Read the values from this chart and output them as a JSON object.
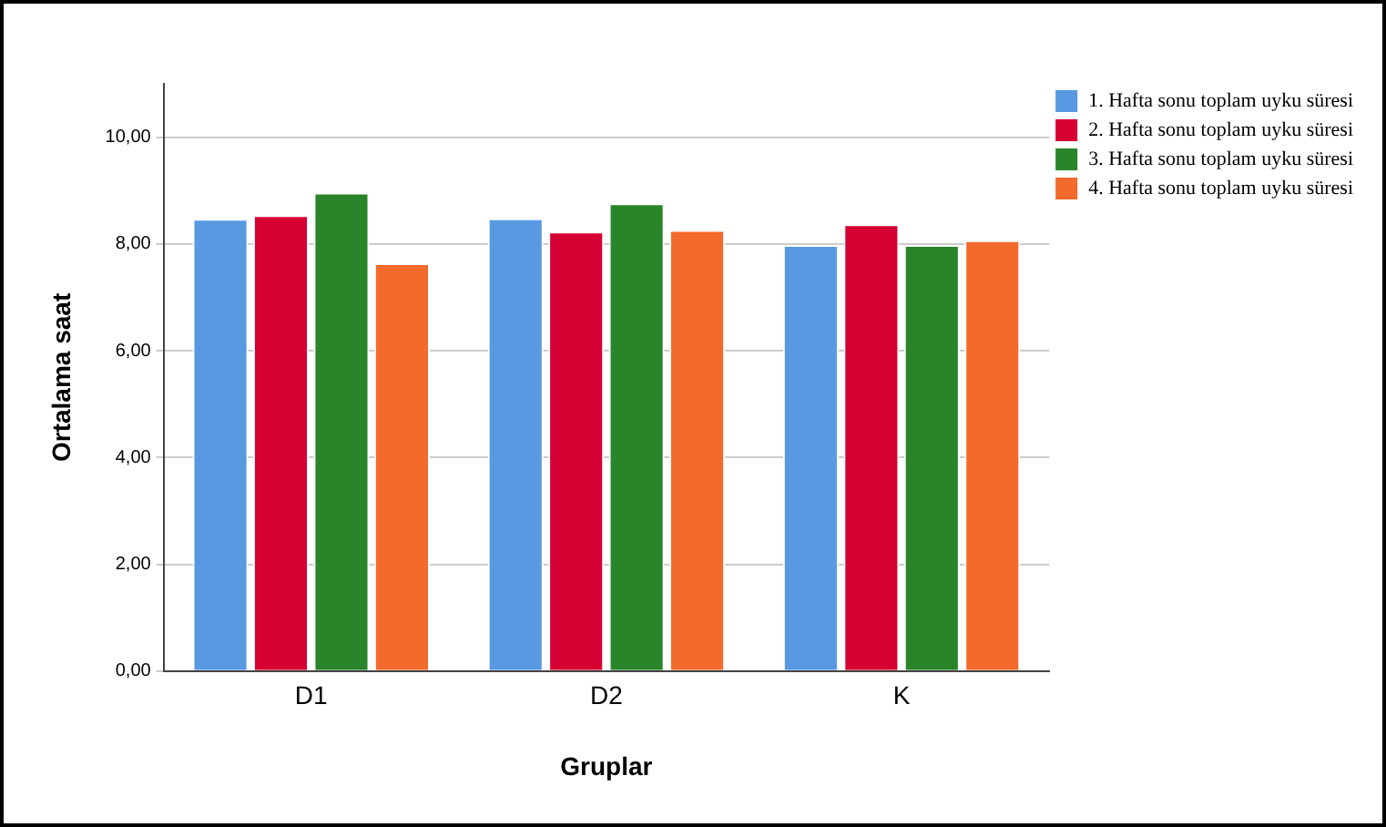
{
  "chart_data": {
    "type": "bar",
    "xlabel": "Gruplar",
    "ylabel": "Ortalama saat",
    "categories": [
      "D1",
      "D2",
      "K"
    ],
    "series": [
      {
        "name": "1. Hafta sonu toplam uyku süresi",
        "color": "#5899e2",
        "values": [
          8.47,
          8.48,
          7.98
        ]
      },
      {
        "name": "2. Hafta sonu toplam uyku süresi",
        "color": "#d60032",
        "values": [
          8.54,
          8.23,
          8.37
        ]
      },
      {
        "name": "3. Hafta sonu toplam uyku süresi",
        "color": "#2a842a",
        "values": [
          8.96,
          8.76,
          7.98
        ]
      },
      {
        "name": "4. Hafta sonu toplam uyku süresi",
        "color": "#f26a2c",
        "values": [
          7.64,
          8.26,
          8.07
        ]
      }
    ],
    "ylim": [
      0,
      11
    ],
    "yticks": [
      {
        "value": 0,
        "label": "0,00"
      },
      {
        "value": 2,
        "label": "2,00"
      },
      {
        "value": 4,
        "label": "4,00"
      },
      {
        "value": 6,
        "label": "6,00"
      },
      {
        "value": 8,
        "label": "8,00"
      },
      {
        "value": 10,
        "label": "10,00"
      }
    ],
    "grid": "y",
    "legend": "top right"
  }
}
